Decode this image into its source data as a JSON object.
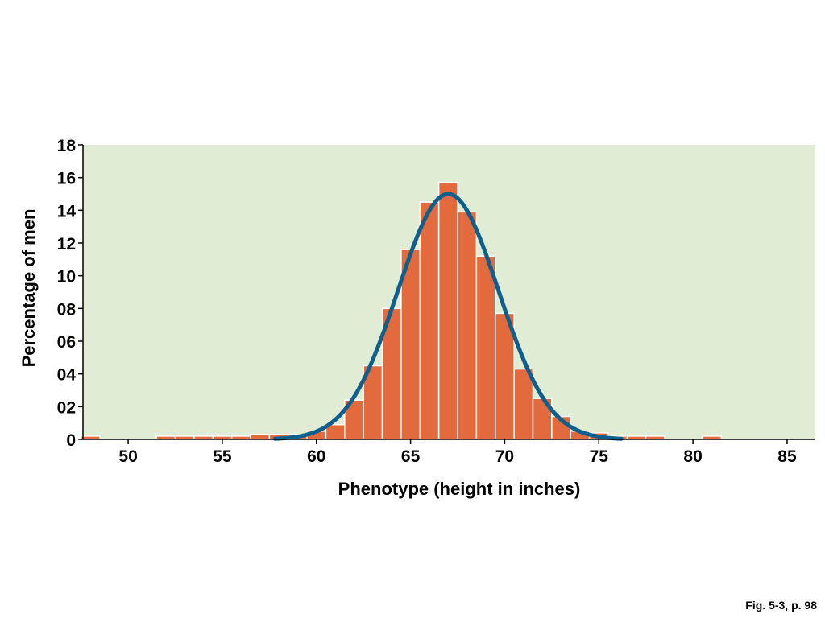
{
  "chart_data": {
    "type": "bar",
    "title": "",
    "xlabel": "Phenotype (height in inches)",
    "ylabel": "Percentage of men",
    "xlim": [
      47.6,
      86.5
    ],
    "ylim": [
      0,
      18
    ],
    "x_ticks": [
      50,
      55,
      60,
      65,
      70,
      75,
      80,
      85
    ],
    "x_tick_labels": [
      "50",
      "55",
      "60",
      "65",
      "70",
      "75",
      "80",
      "85"
    ],
    "y_ticks": [
      0,
      2,
      4,
      6,
      8,
      10,
      12,
      14,
      16,
      18
    ],
    "y_tick_labels": [
      "0",
      "02",
      "04",
      "06",
      "08",
      "10",
      "12",
      "14",
      "16",
      "18"
    ],
    "bar_width": 1,
    "bins": [
      48,
      52,
      53,
      54,
      55,
      56,
      57,
      58,
      59,
      60,
      61,
      62,
      63,
      64,
      65,
      66,
      67,
      68,
      69,
      70,
      71,
      72,
      73,
      74,
      75,
      76,
      77,
      78,
      81
    ],
    "values": [
      0.2,
      0.2,
      0.2,
      0.2,
      0.2,
      0.2,
      0.3,
      0.3,
      0.3,
      0.5,
      0.9,
      2.4,
      4.5,
      8.0,
      11.6,
      14.5,
      15.7,
      13.9,
      11.2,
      7.7,
      4.3,
      2.5,
      1.4,
      0.5,
      0.4,
      0.2,
      0.2,
      0.2,
      0.2
    ],
    "fit_curve": {
      "type": "normal",
      "mean": 67,
      "sd": 2.67,
      "peak": 15.0
    },
    "colors": {
      "bars": "#E26A3D",
      "bar_edge": "#FFFFFF",
      "curve": "#0E5F8C",
      "plot_bg": "#E0EDD4",
      "axis": "#000000"
    }
  },
  "caption": "Fig. 5-3, p. 98"
}
